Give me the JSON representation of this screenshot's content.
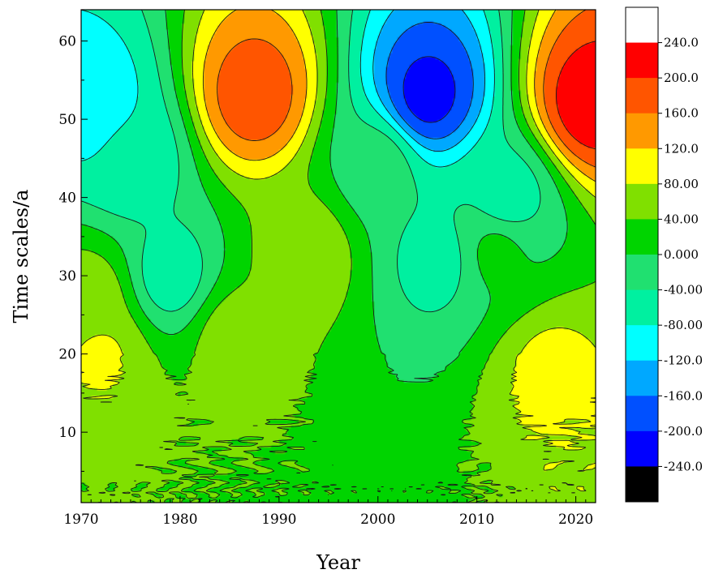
{
  "chart_data": {
    "type": "heatmap",
    "subtype": "filled-contour (wavelet real part)",
    "xlabel": "Year",
    "ylabel": "Time scales/a",
    "xlim": [
      1970,
      2022
    ],
    "ylim": [
      1,
      64
    ],
    "x_ticks": [
      1970,
      1980,
      1990,
      2000,
      2010,
      2020
    ],
    "x_tick_labels": [
      "1970",
      "1980",
      "1990",
      "2000",
      "2010",
      "2020"
    ],
    "y_ticks": [
      10,
      20,
      30,
      40,
      50,
      60
    ],
    "y_tick_labels": [
      "10",
      "20",
      "30",
      "40",
      "50",
      "60"
    ],
    "contour_levels": [
      -240,
      -200,
      -160,
      -120,
      -80,
      -40,
      0,
      40,
      80,
      120,
      160,
      200,
      240
    ],
    "negative_contours_dashed": true,
    "colorbar": {
      "position": "right",
      "labels": [
        "240.0",
        "200.0",
        "160.0",
        "120.0",
        "80.00",
        "40.00",
        "0.000",
        "-40.00",
        "-80.00",
        "-120.0",
        "-160.0",
        "-200.0",
        "-240.0"
      ],
      "bands_top_to_bottom": [
        {
          "range": "> 240",
          "color": "#ffffff"
        },
        {
          "range": "200 to 240",
          "color": "#ff0000"
        },
        {
          "range": "160 to 200",
          "color": "#ff5500"
        },
        {
          "range": "120 to 160",
          "color": "#ff9900"
        },
        {
          "range": "80 to 120",
          "color": "#ffff00"
        },
        {
          "range": "40 to 80",
          "color": "#80e000"
        },
        {
          "range": "0 to 40",
          "color": "#00d400"
        },
        {
          "range": "-40 to 0",
          "color": "#20e070"
        },
        {
          "range": "-80 to -40",
          "color": "#00f0a0"
        },
        {
          "range": "-120 to -80",
          "color": "#00ffff"
        },
        {
          "range": "-160 to -120",
          "color": "#00a8ff"
        },
        {
          "range": "-200 to -160",
          "color": "#0050ff"
        },
        {
          "range": "-240 to -200",
          "color": "#0000ff"
        },
        {
          "range": "< -240",
          "color": "#000000"
        }
      ]
    },
    "field_centers": [
      {
        "year": 1987.5,
        "scale": 53,
        "value": 185
      },
      {
        "year": 2005,
        "scale": 53,
        "value": -215
      },
      {
        "year": 2021.5,
        "scale": 52,
        "value": 225
      },
      {
        "year": 1971,
        "scale": 52,
        "value": -110
      },
      {
        "year": 1979,
        "scale": 30,
        "value": -60
      },
      {
        "year": 2006,
        "scale": 32,
        "value": -55
      },
      {
        "year": 1993,
        "scale": 33,
        "value": 65
      },
      {
        "year": 1971,
        "scale": 27,
        "value": 60
      },
      {
        "year": 1972,
        "scale": 20,
        "value": 85
      },
      {
        "year": 1985.5,
        "scale": 22,
        "value": 60
      },
      {
        "year": 2017.5,
        "scale": 18,
        "value": 90
      },
      {
        "year": 2012,
        "scale": 33,
        "value": 10
      },
      {
        "year": 2000,
        "scale": 44,
        "value": -20
      },
      {
        "year": 2013,
        "scale": 40,
        "value": -60
      },
      {
        "year": 1975,
        "scale": 45,
        "value": -70
      }
    ]
  }
}
